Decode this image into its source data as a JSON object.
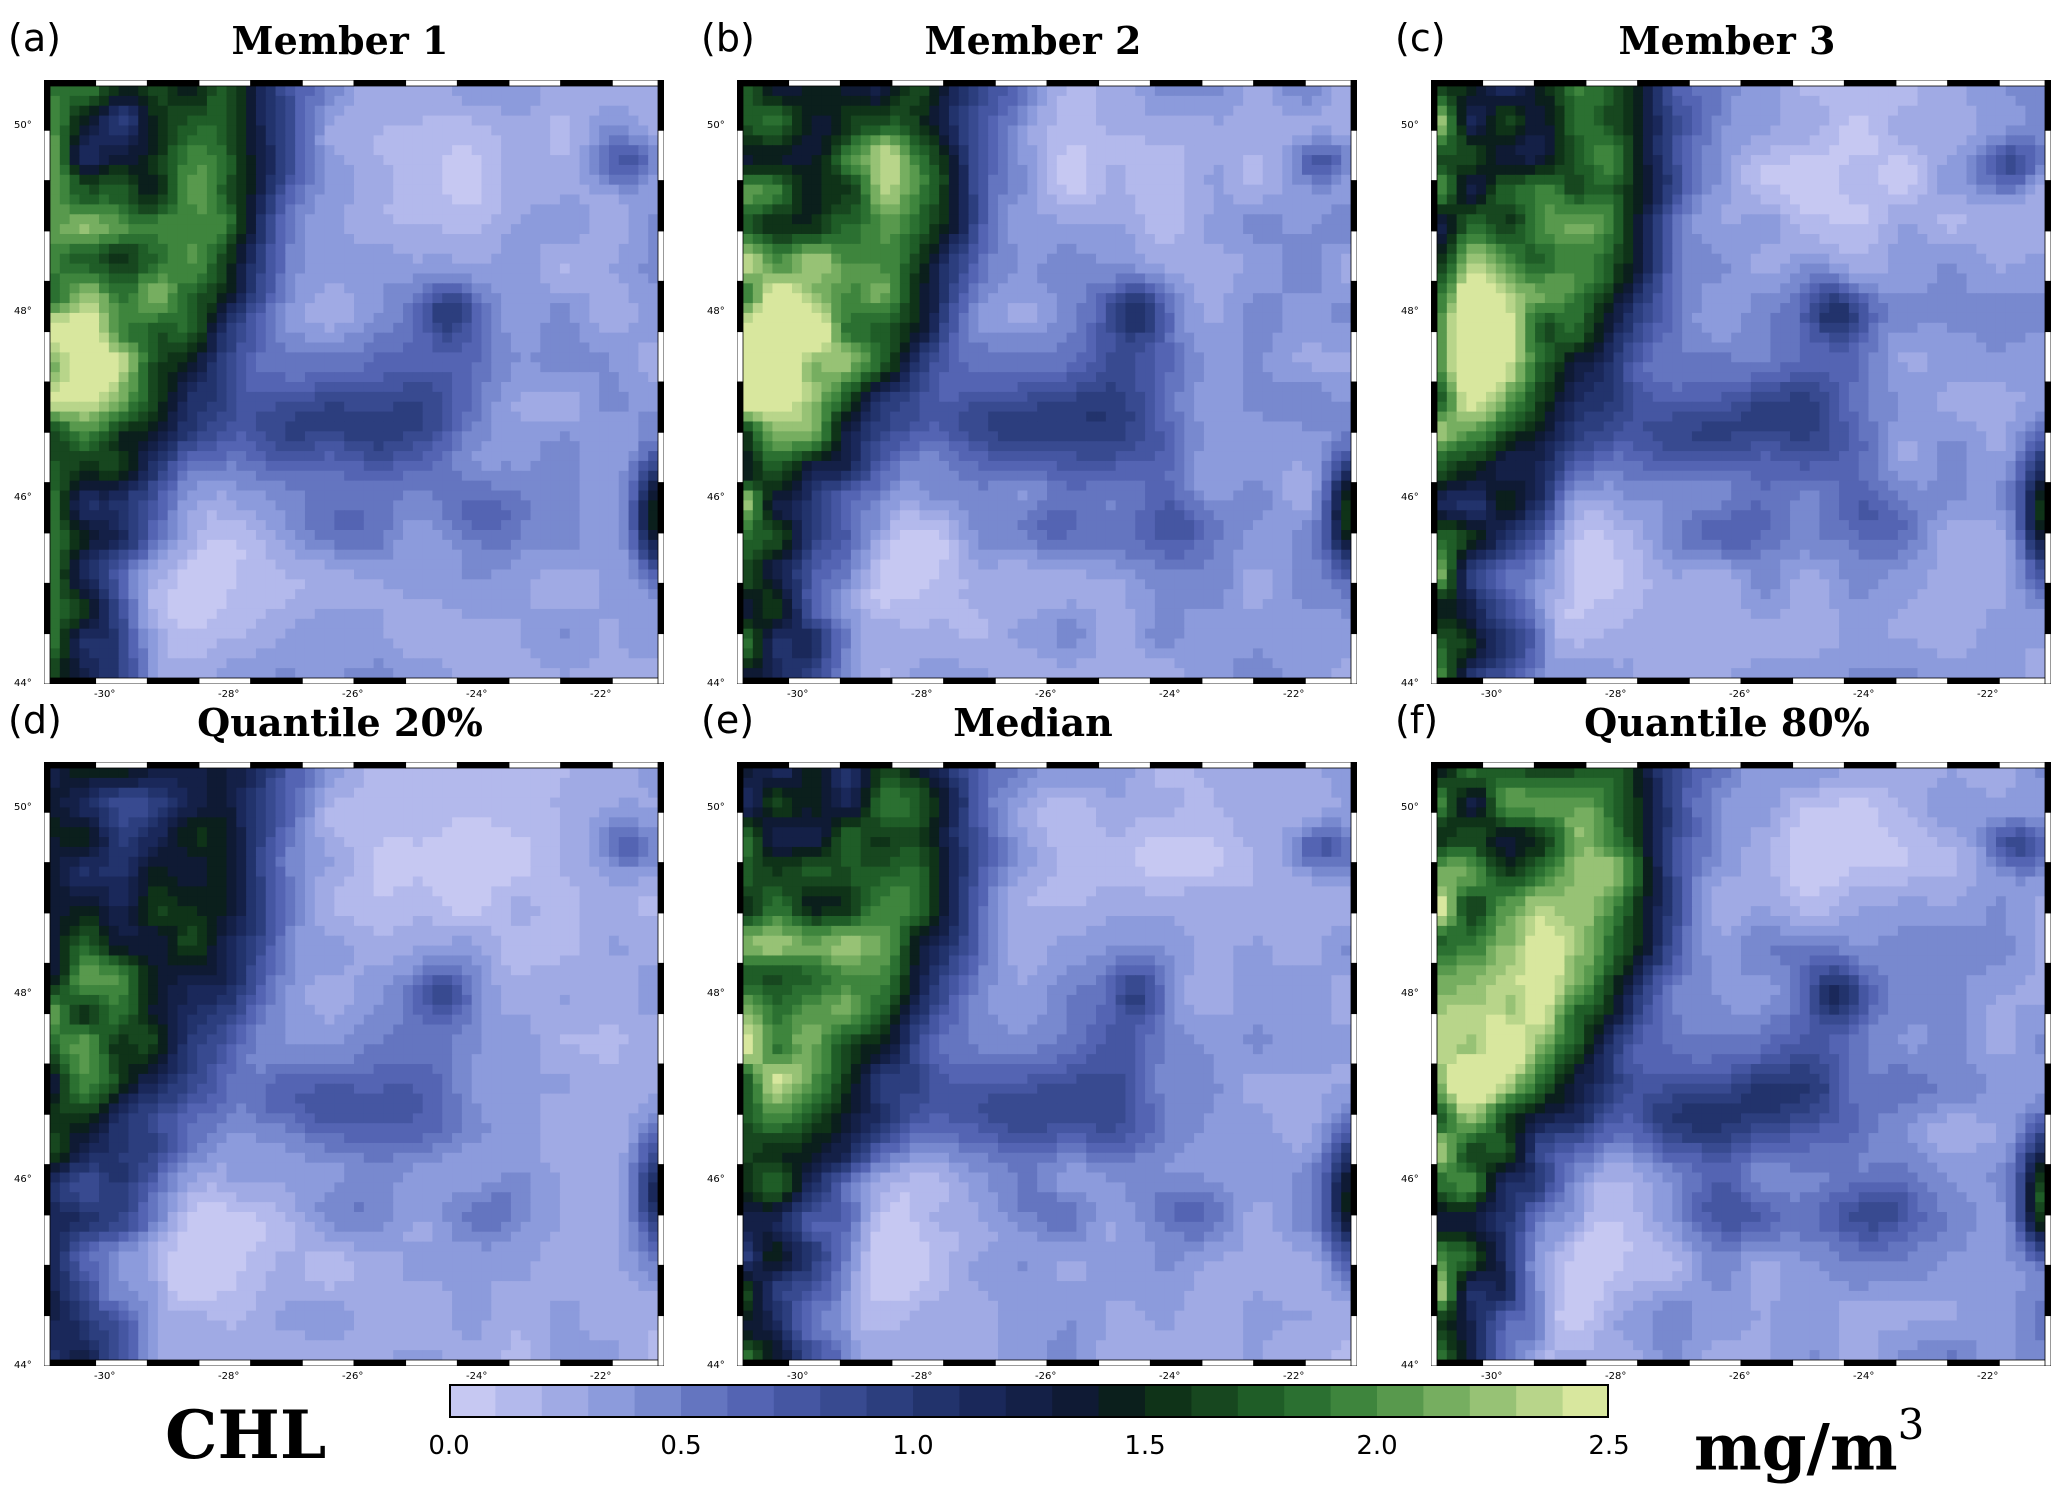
{
  "panels": [
    {
      "tag": "(a)",
      "title": "Member 1"
    },
    {
      "tag": "(b)",
      "title": "Member 2"
    },
    {
      "tag": "(c)",
      "title": "Member 3"
    },
    {
      "tag": "(d)",
      "title": "Quantile 20%"
    },
    {
      "tag": "(e)",
      "title": "Median"
    },
    {
      "tag": "(f)",
      "title": "Quantile 80%"
    }
  ],
  "axes": {
    "lat_ticks": [
      "50°",
      "48°",
      "46°",
      "44°"
    ],
    "lon_ticks": [
      "-30°",
      "-28°",
      "-26°",
      "-24°",
      "-22°"
    ]
  },
  "colorbar": {
    "variable": "CHL",
    "unit_base": "mg/m",
    "unit_exp": "3",
    "range": [
      0.0,
      2.5
    ],
    "tick_labels": [
      "0.0",
      "0.5",
      "1.0",
      "1.5",
      "2.0",
      "2.5"
    ],
    "colors": [
      "#c6c8f2",
      "#b3b9ec",
      "#a0aae4",
      "#8c9bdc",
      "#7889cf",
      "#6475c0",
      "#5464b3",
      "#4556a2",
      "#384a90",
      "#2c3e7e",
      "#22336c",
      "#1a285a",
      "#142047",
      "#0f1a34",
      "#0b1f1c",
      "#0f3318",
      "#17471f",
      "#1f5d27",
      "#2b7031",
      "#3e853d",
      "#58994d",
      "#76ae60",
      "#97c275",
      "#b8d58a",
      "#d8e79e"
    ]
  }
}
